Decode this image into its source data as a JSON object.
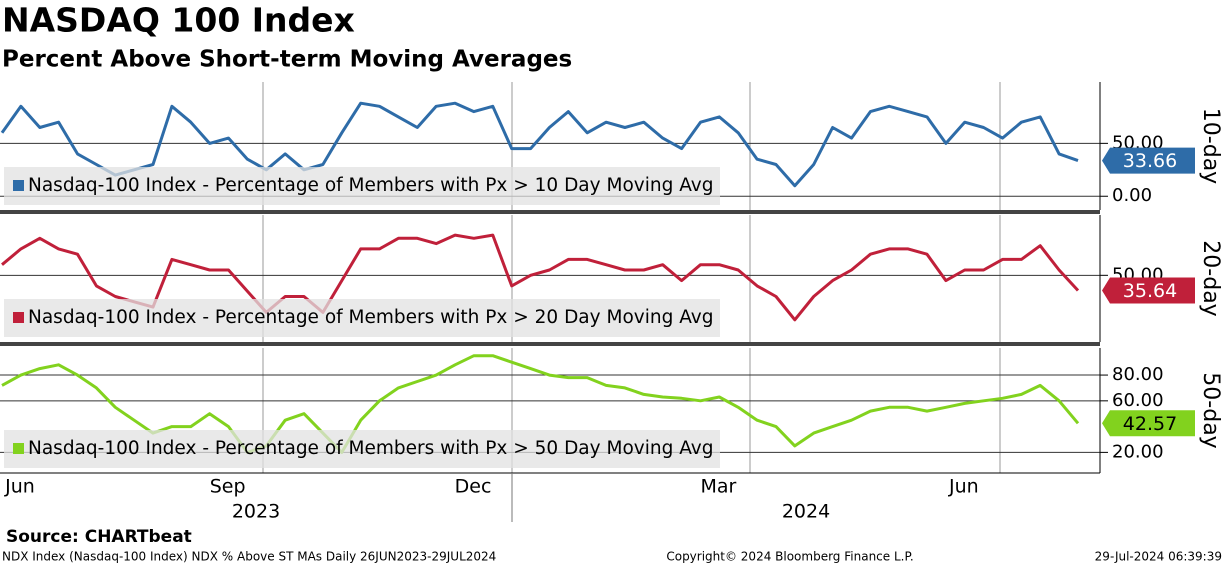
{
  "title": "NASDAQ 100 Index",
  "subtitle": "Percent Above Short-term Moving Averages",
  "source": "Source: CHARTbeat",
  "footer": {
    "left": "NDX Index (Nasdaq-100 Index) NDX % Above ST MAs  Daily 26JUN2023-29JUL2024",
    "center": "Copyright© 2024 Bloomberg Finance L.P.",
    "right": "29-Jul-2024 06:39:39"
  },
  "x_axis": {
    "categories": [
      "Jun",
      null,
      null,
      null,
      null,
      null,
      null,
      null,
      null,
      null,
      null,
      "Sep",
      null,
      null,
      null,
      null,
      null,
      null,
      null,
      null,
      null,
      null,
      null,
      null,
      "Dec",
      null,
      null,
      null,
      null,
      null,
      null,
      null,
      null,
      null,
      null,
      null,
      null,
      "Mar",
      null,
      null,
      null,
      null,
      null,
      null,
      null,
      null,
      null,
      null,
      null,
      null,
      "Jun",
      null,
      null,
      null,
      null,
      null,
      null,
      null
    ],
    "years": [
      "2023",
      "2024"
    ]
  },
  "chart_data": [
    {
      "type": "line",
      "ylabel": "10-day",
      "ylim": [
        -13,
        108
      ],
      "yticks": [
        {
          "value": 0,
          "label": "0.00"
        },
        {
          "value": 50,
          "label": "50.00"
        }
      ],
      "grid": true,
      "tag_text_color": "#ffffff",
      "series": [
        {
          "name": "Nasdaq-100 Index - Percentage of Members with Px > 10 Day Moving Avg",
          "color": "#2e6ca8",
          "values": [
            60,
            85,
            65,
            70,
            40,
            30,
            20,
            25,
            30,
            85,
            70,
            50,
            55,
            35,
            25,
            40,
            25,
            30,
            60,
            88,
            85,
            75,
            65,
            85,
            88,
            80,
            85,
            45,
            45,
            65,
            80,
            60,
            70,
            65,
            70,
            55,
            45,
            70,
            75,
            60,
            35,
            30,
            10,
            30,
            65,
            55,
            80,
            85,
            80,
            75,
            50,
            70,
            65,
            55,
            70,
            75,
            40,
            33.66
          ]
        }
      ]
    },
    {
      "type": "line",
      "ylabel": "20-day",
      "ylim": [
        -13,
        107
      ],
      "yticks": [
        {
          "value": 50,
          "label": "50.00"
        }
      ],
      "grid": true,
      "tag_text_color": "#ffffff",
      "series": [
        {
          "name": "Nasdaq-100 Index - Percentage of Members with Px > 20 Day Moving Avg",
          "color": "#c0203a",
          "values": [
            60,
            75,
            85,
            75,
            70,
            40,
            30,
            25,
            20,
            65,
            60,
            55,
            55,
            35,
            15,
            30,
            30,
            15,
            45,
            75,
            75,
            85,
            85,
            80,
            88,
            85,
            88,
            40,
            50,
            55,
            65,
            65,
            60,
            55,
            55,
            60,
            45,
            60,
            60,
            55,
            40,
            30,
            8,
            30,
            45,
            55,
            70,
            75,
            75,
            70,
            45,
            55,
            55,
            65,
            65,
            78,
            55,
            35.64
          ]
        }
      ]
    },
    {
      "type": "line",
      "ylabel": "50-day",
      "ylim": [
        4,
        101
      ],
      "yticks": [
        {
          "value": 20,
          "label": "20.00"
        },
        {
          "value": 60,
          "label": "60.00"
        },
        {
          "value": 80,
          "label": "80.00"
        }
      ],
      "grid": true,
      "tag_text_color": "#000000",
      "series": [
        {
          "name": "Nasdaq-100 Index - Percentage of Members with Px > 50 Day Moving Avg",
          "color": "#82d21e",
          "values": [
            72,
            80,
            85,
            88,
            80,
            70,
            55,
            45,
            35,
            40,
            40,
            50,
            40,
            20,
            25,
            45,
            50,
            35,
            20,
            45,
            60,
            70,
            75,
            80,
            88,
            95,
            95,
            90,
            85,
            80,
            78,
            78,
            72,
            70,
            65,
            63,
            62,
            60,
            63,
            55,
            45,
            40,
            25,
            35,
            40,
            45,
            52,
            55,
            55,
            52,
            55,
            58,
            60,
            62,
            65,
            72,
            60,
            42.57
          ]
        }
      ]
    }
  ]
}
